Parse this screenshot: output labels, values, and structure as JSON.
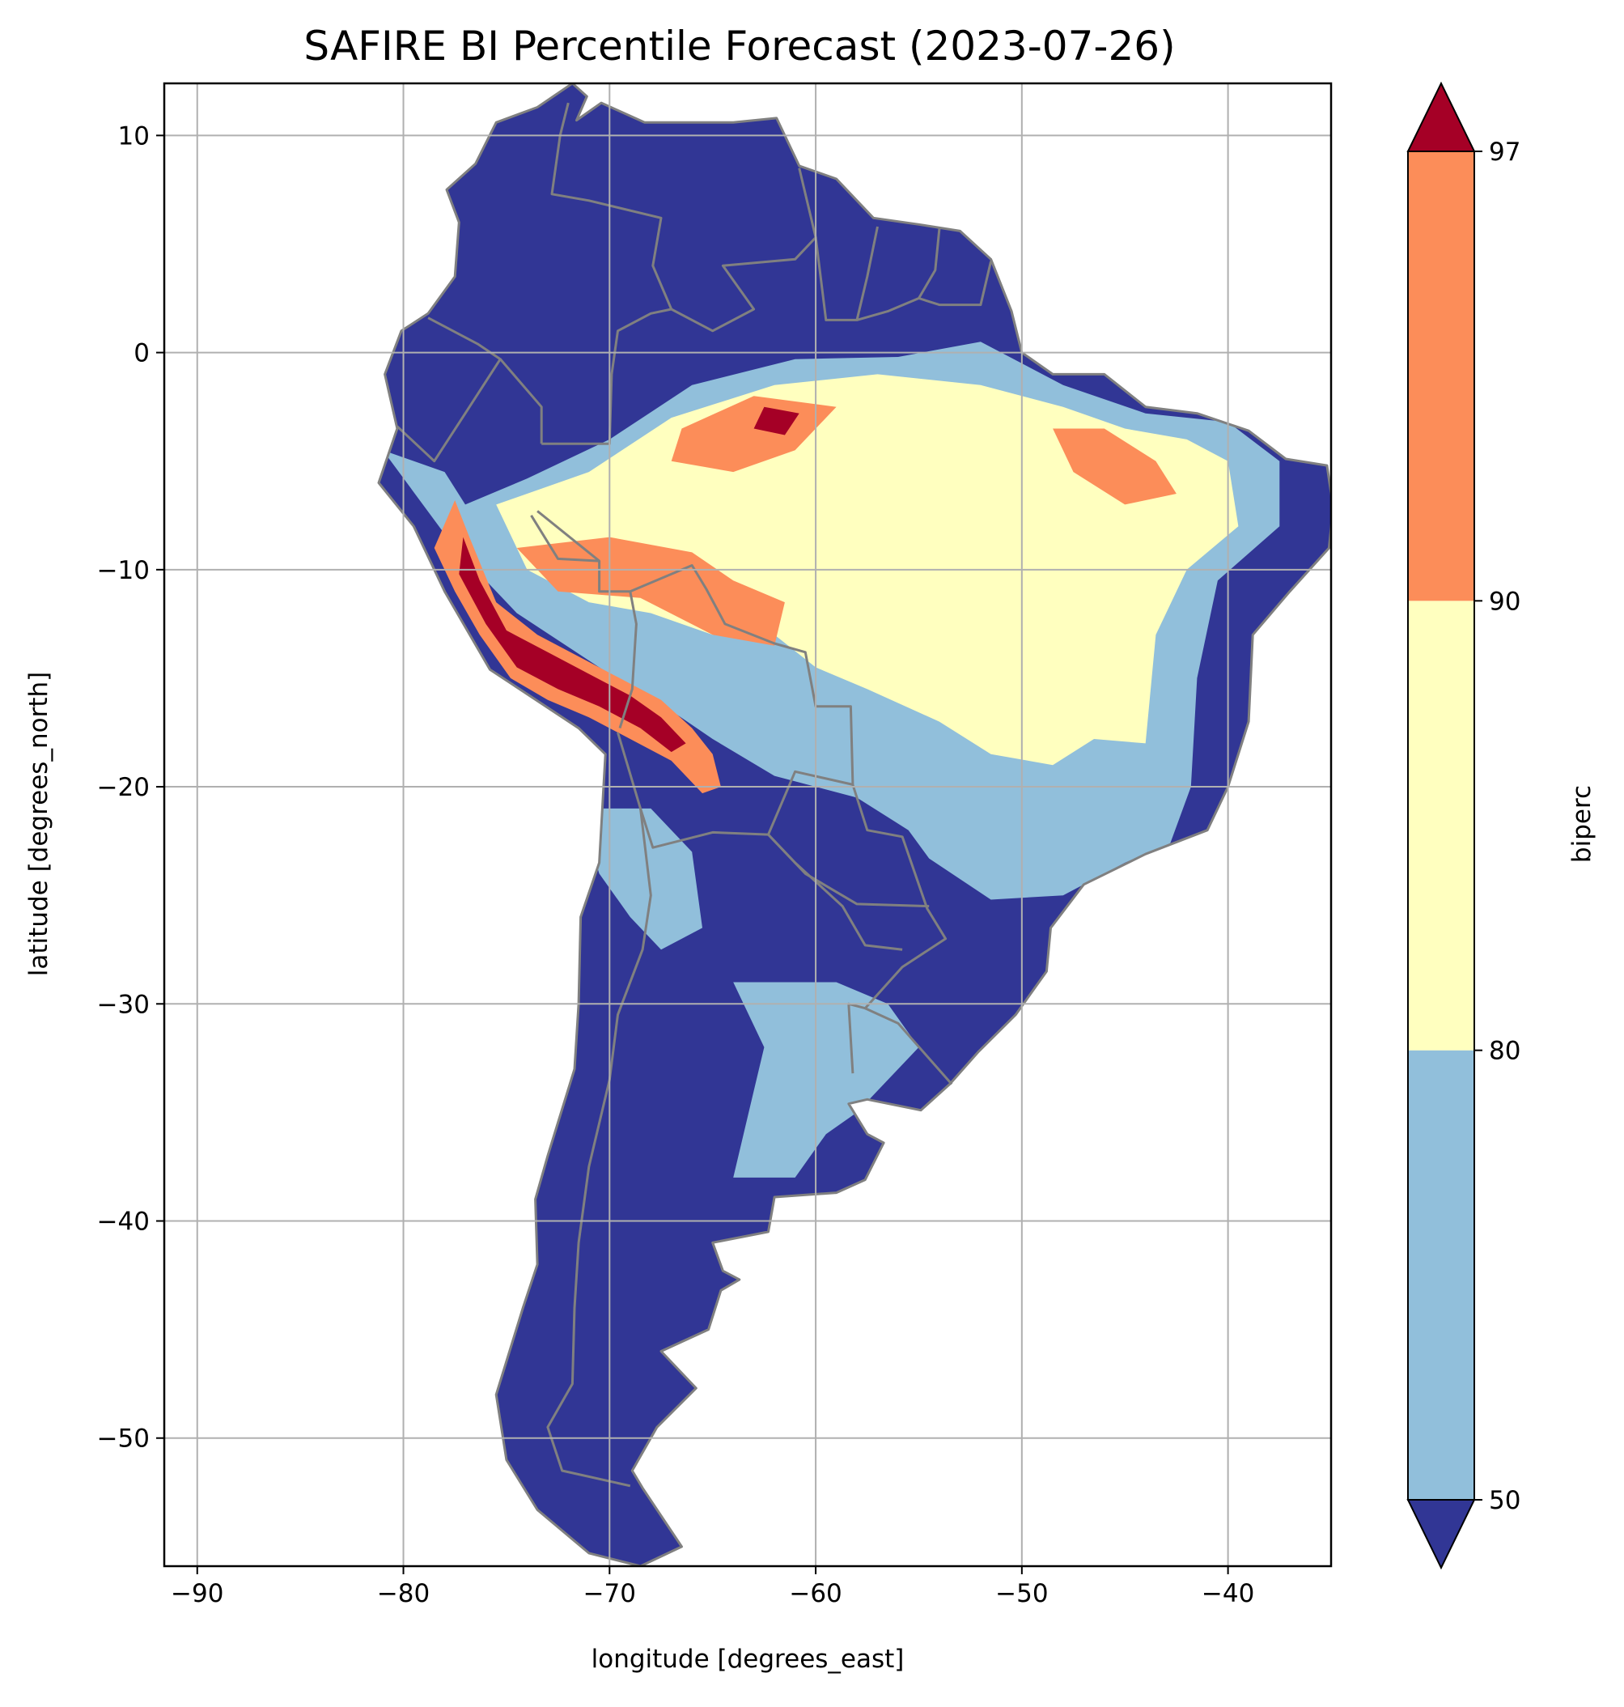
{
  "title": "SAFIRE BI Percentile Forecast (2023-07-26)",
  "x_axis": {
    "label": "longitude [degrees_east]",
    "ticks": [
      -90,
      -80,
      -70,
      -60,
      -50,
      -40
    ],
    "tick_labels": [
      "−90",
      "−80",
      "−70",
      "−60",
      "−50",
      "−40"
    ]
  },
  "y_axis": {
    "label": "latitude [degrees_north]",
    "ticks": [
      10,
      0,
      -10,
      -20,
      -30,
      -40,
      -50
    ],
    "tick_labels": [
      "10",
      "0",
      "−10",
      "−20",
      "−30",
      "−40",
      "−50"
    ]
  },
  "colorbar": {
    "label": "biperc",
    "ticks": [
      50,
      80,
      90,
      97
    ],
    "tick_labels": [
      "50",
      "80",
      "90",
      "97"
    ],
    "bins": [
      {
        "range": "<50",
        "color": "#313695"
      },
      {
        "range": "50-80",
        "color": "#91bfdb"
      },
      {
        "range": "80-90",
        "color": "#ffffbf"
      },
      {
        "range": "90-97",
        "color": "#fc8d59"
      },
      {
        "range": ">97",
        "color": "#a50026"
      }
    ]
  },
  "map": {
    "extent": {
      "lon": [
        -91.6,
        -35.0
      ],
      "lat": [
        -55.9,
        12.4
      ]
    },
    "grid": true,
    "border_color": "#808080",
    "land_default_color": "#313695",
    "coastline": [
      [
        -77.9,
        7.5
      ],
      [
        -76.5,
        8.7
      ],
      [
        -75.5,
        10.6
      ],
      [
        -73.5,
        11.3
      ],
      [
        -71.8,
        12.4
      ],
      [
        -71.1,
        11.8
      ],
      [
        -71.6,
        10.7
      ],
      [
        -70.4,
        11.5
      ],
      [
        -68.3,
        10.6
      ],
      [
        -66.0,
        10.6
      ],
      [
        -64.0,
        10.6
      ],
      [
        -61.9,
        10.8
      ],
      [
        -60.8,
        8.6
      ],
      [
        -59.0,
        8.0
      ],
      [
        -57.2,
        6.2
      ],
      [
        -55.0,
        5.9
      ],
      [
        -53.0,
        5.6
      ],
      [
        -51.5,
        4.3
      ],
      [
        -50.5,
        1.9
      ],
      [
        -50.0,
        0.0
      ],
      [
        -48.5,
        -1.0
      ],
      [
        -46.0,
        -1.0
      ],
      [
        -44.0,
        -2.5
      ],
      [
        -41.5,
        -2.8
      ],
      [
        -39.0,
        -3.6
      ],
      [
        -37.2,
        -4.9
      ],
      [
        -35.2,
        -5.2
      ],
      [
        -34.9,
        -7.1
      ],
      [
        -35.1,
        -9.0
      ],
      [
        -37.0,
        -11.0
      ],
      [
        -38.8,
        -13.0
      ],
      [
        -39.0,
        -17.0
      ],
      [
        -40.0,
        -20.0
      ],
      [
        -41.0,
        -22.0
      ],
      [
        -44.0,
        -23.1
      ],
      [
        -47.0,
        -24.5
      ],
      [
        -48.6,
        -26.5
      ],
      [
        -48.8,
        -28.5
      ],
      [
        -50.3,
        -30.5
      ],
      [
        -52.1,
        -32.2
      ],
      [
        -53.5,
        -33.7
      ],
      [
        -54.9,
        -34.9
      ],
      [
        -57.5,
        -34.4
      ],
      [
        -58.4,
        -34.6
      ],
      [
        -57.5,
        -36.0
      ],
      [
        -56.7,
        -36.4
      ],
      [
        -57.6,
        -38.1
      ],
      [
        -59.0,
        -38.7
      ],
      [
        -62.0,
        -38.9
      ],
      [
        -62.3,
        -40.5
      ],
      [
        -65.0,
        -41.0
      ],
      [
        -64.5,
        -42.3
      ],
      [
        -63.7,
        -42.7
      ],
      [
        -64.6,
        -43.2
      ],
      [
        -65.2,
        -45.0
      ],
      [
        -67.5,
        -46.0
      ],
      [
        -65.8,
        -47.7
      ],
      [
        -67.7,
        -49.5
      ],
      [
        -68.9,
        -51.5
      ],
      [
        -68.4,
        -52.3
      ],
      [
        -66.5,
        -55.0
      ],
      [
        -68.5,
        -55.9
      ],
      [
        -71.0,
        -55.3
      ],
      [
        -73.5,
        -53.3
      ],
      [
        -75.0,
        -51.0
      ],
      [
        -75.5,
        -48.0
      ],
      [
        -74.2,
        -44.0
      ],
      [
        -73.5,
        -42.0
      ],
      [
        -73.6,
        -39.0
      ],
      [
        -73.0,
        -37.0
      ],
      [
        -71.7,
        -33.0
      ],
      [
        -71.5,
        -30.0
      ],
      [
        -71.4,
        -26.0
      ],
      [
        -70.5,
        -23.5
      ],
      [
        -70.2,
        -18.5
      ],
      [
        -71.5,
        -17.3
      ],
      [
        -75.8,
        -14.6
      ],
      [
        -78.0,
        -11.0
      ],
      [
        -79.5,
        -8.0
      ],
      [
        -81.2,
        -6.0
      ],
      [
        -80.3,
        -3.5
      ],
      [
        -80.9,
        -1.0
      ],
      [
        -80.1,
        1.0
      ],
      [
        -78.8,
        1.8
      ],
      [
        -77.5,
        3.5
      ],
      [
        -77.3,
        6.0
      ],
      [
        -77.9,
        7.5
      ]
    ],
    "zones": [
      {
        "bin": "50-80",
        "polygon": [
          [
            -81.0,
            -4.5
          ],
          [
            -78.0,
            -5.5
          ],
          [
            -77.0,
            -7.0
          ],
          [
            -74.0,
            -5.8
          ],
          [
            -70.0,
            -4.0
          ],
          [
            -66.0,
            -1.5
          ],
          [
            -61.0,
            -0.3
          ],
          [
            -56.0,
            -0.2
          ],
          [
            -52.0,
            0.5
          ],
          [
            -48.0,
            -1.5
          ],
          [
            -44.0,
            -2.8
          ],
          [
            -40.0,
            -3.2
          ],
          [
            -37.5,
            -5.0
          ],
          [
            -37.5,
            -8.0
          ],
          [
            -40.5,
            -10.5
          ],
          [
            -41.5,
            -15.0
          ],
          [
            -41.8,
            -20.0
          ],
          [
            -42.8,
            -22.6
          ],
          [
            -45.0,
            -23.5
          ],
          [
            -48.0,
            -25.0
          ],
          [
            -51.5,
            -25.2
          ],
          [
            -54.5,
            -23.3
          ],
          [
            -55.5,
            -22.0
          ],
          [
            -58.0,
            -20.5
          ],
          [
            -62.0,
            -19.5
          ],
          [
            -65.0,
            -17.8
          ],
          [
            -67.0,
            -16.5
          ],
          [
            -70.5,
            -14.5
          ],
          [
            -74.5,
            -12.0
          ],
          [
            -77.5,
            -9.0
          ]
        ]
      },
      {
        "bin": "50-80",
        "polygon": [
          [
            -71.5,
            -21.0
          ],
          [
            -68.0,
            -21.0
          ],
          [
            -66.0,
            -23.0
          ],
          [
            -65.5,
            -26.5
          ],
          [
            -67.5,
            -27.5
          ],
          [
            -69.0,
            -26.0
          ],
          [
            -70.5,
            -24.0
          ]
        ]
      },
      {
        "bin": "50-80",
        "polygon": [
          [
            -64.0,
            -29.0
          ],
          [
            -59.0,
            -29.0
          ],
          [
            -56.5,
            -30.0
          ],
          [
            -55.0,
            -32.0
          ],
          [
            -58.0,
            -35.0
          ],
          [
            -59.5,
            -36.0
          ],
          [
            -61.0,
            -38.0
          ],
          [
            -64.0,
            -38.0
          ],
          [
            -63.0,
            -34.0
          ],
          [
            -62.5,
            -32.0
          ]
        ]
      },
      {
        "bin": "80-90",
        "polygon": [
          [
            -75.5,
            -7.0
          ],
          [
            -71.0,
            -5.5
          ],
          [
            -67.0,
            -3.0
          ],
          [
            -62.0,
            -1.5
          ],
          [
            -57.0,
            -1.0
          ],
          [
            -52.0,
            -1.5
          ],
          [
            -48.0,
            -2.5
          ],
          [
            -45.0,
            -3.5
          ],
          [
            -42.0,
            -4.0
          ],
          [
            -40.0,
            -5.0
          ],
          [
            -39.5,
            -8.0
          ],
          [
            -42.0,
            -10.0
          ],
          [
            -43.5,
            -13.0
          ],
          [
            -44.0,
            -18.0
          ],
          [
            -46.5,
            -17.8
          ],
          [
            -48.5,
            -19.0
          ],
          [
            -51.5,
            -18.5
          ],
          [
            -54.0,
            -17.0
          ],
          [
            -57.5,
            -15.5
          ],
          [
            -60.0,
            -14.5
          ],
          [
            -62.0,
            -13.0
          ],
          [
            -65.0,
            -13.0
          ],
          [
            -68.0,
            -12.0
          ],
          [
            -71.0,
            -11.5
          ],
          [
            -74.0,
            -10.0
          ]
        ]
      },
      {
        "bin": "90-97",
        "polygon": [
          [
            -66.5,
            -3.5
          ],
          [
            -63.0,
            -2.0
          ],
          [
            -59.0,
            -2.5
          ],
          [
            -61.0,
            -4.5
          ],
          [
            -64.0,
            -5.5
          ],
          [
            -67.0,
            -5.0
          ]
        ]
      },
      {
        "bin": "90-97",
        "polygon": [
          [
            -74.5,
            -9.0
          ],
          [
            -70.0,
            -8.5
          ],
          [
            -66.0,
            -9.2
          ],
          [
            -64.0,
            -10.5
          ],
          [
            -61.5,
            -11.5
          ],
          [
            -62.0,
            -13.5
          ],
          [
            -65.0,
            -13.0
          ],
          [
            -68.5,
            -11.3
          ],
          [
            -72.5,
            -11.0
          ]
        ]
      },
      {
        "bin": "90-97",
        "polygon": [
          [
            -48.5,
            -3.5
          ],
          [
            -46.0,
            -3.5
          ],
          [
            -43.5,
            -5.0
          ],
          [
            -42.5,
            -6.5
          ],
          [
            -45.0,
            -7.0
          ],
          [
            -47.5,
            -5.5
          ]
        ]
      },
      {
        "bin": "90-97",
        "polygon": [
          [
            -77.5,
            -6.8
          ],
          [
            -76.8,
            -8.5
          ],
          [
            -75.5,
            -11.5
          ],
          [
            -73.5,
            -13.0
          ],
          [
            -71.5,
            -14.0
          ],
          [
            -69.5,
            -15.0
          ],
          [
            -67.5,
            -16.0
          ],
          [
            -66.0,
            -17.3
          ],
          [
            -65.0,
            -18.5
          ],
          [
            -64.6,
            -20.0
          ],
          [
            -65.5,
            -20.3
          ],
          [
            -67.0,
            -18.8
          ],
          [
            -69.0,
            -17.8
          ],
          [
            -71.0,
            -16.8
          ],
          [
            -73.0,
            -16.0
          ],
          [
            -74.8,
            -15.0
          ],
          [
            -76.3,
            -13.0
          ],
          [
            -77.5,
            -11.0
          ],
          [
            -78.5,
            -9.0
          ]
        ]
      },
      {
        "bin": ">97",
        "polygon": [
          [
            -77.1,
            -8.5
          ],
          [
            -76.3,
            -10.5
          ],
          [
            -75.0,
            -12.8
          ],
          [
            -73.0,
            -13.8
          ],
          [
            -71.0,
            -14.8
          ],
          [
            -69.0,
            -15.8
          ],
          [
            -67.5,
            -16.8
          ],
          [
            -66.3,
            -18.0
          ],
          [
            -67.0,
            -18.4
          ],
          [
            -68.5,
            -17.3
          ],
          [
            -70.5,
            -16.3
          ],
          [
            -72.5,
            -15.5
          ],
          [
            -74.5,
            -14.5
          ],
          [
            -76.0,
            -12.5
          ],
          [
            -77.3,
            -10.2
          ]
        ]
      },
      {
        "bin": ">97",
        "polygon": [
          [
            -62.5,
            -2.5
          ],
          [
            -60.8,
            -2.8
          ],
          [
            -61.5,
            -3.8
          ],
          [
            -63.0,
            -3.5
          ]
        ]
      }
    ],
    "borders": [
      [
        [
          -73.3,
          -4.2
        ],
        [
          -70.0,
          -4.2
        ],
        [
          -69.9,
          -1.0
        ],
        [
          -69.6,
          1.0
        ],
        [
          -68.0,
          1.8
        ],
        [
          -67.0,
          2.0
        ]
      ],
      [
        [
          -73.5,
          -7.3
        ],
        [
          -70.5,
          -9.6
        ],
        [
          -70.5,
          -11.0
        ],
        [
          -69.0,
          -11.0
        ],
        [
          -66.0,
          -9.8
        ],
        [
          -65.3,
          -10.9
        ],
        [
          -64.4,
          -12.5
        ],
        [
          -62.0,
          -13.4
        ],
        [
          -60.5,
          -13.8
        ],
        [
          -60.0,
          -16.3
        ],
        [
          -58.3,
          -16.3
        ],
        [
          -58.2,
          -19.9
        ],
        [
          -57.5,
          -22.0
        ],
        [
          -55.8,
          -22.3
        ],
        [
          -54.6,
          -25.6
        ],
        [
          -53.7,
          -27.0
        ],
        [
          -55.8,
          -28.3
        ],
        [
          -57.6,
          -30.2
        ],
        [
          -56.0,
          -30.9
        ],
        [
          -53.4,
          -33.7
        ]
      ],
      [
        [
          -69.6,
          -17.5
        ],
        [
          -68.5,
          -21.0
        ],
        [
          -67.9,
          -22.8
        ],
        [
          -65.0,
          -22.1
        ],
        [
          -62.3,
          -22.2
        ],
        [
          -61.0,
          -19.3
        ],
        [
          -58.2,
          -19.9
        ]
      ],
      [
        [
          -69.5,
          -17.3
        ],
        [
          -68.9,
          -15.5
        ],
        [
          -68.7,
          -12.5
        ],
        [
          -69.0,
          -11.0
        ]
      ],
      [
        [
          -68.5,
          -21.0
        ],
        [
          -68.0,
          -25.0
        ],
        [
          -68.4,
          -27.5
        ],
        [
          -69.6,
          -30.5
        ],
        [
          -70.0,
          -33.5
        ],
        [
          -71.0,
          -37.5
        ],
        [
          -71.5,
          -41.0
        ],
        [
          -71.7,
          -44.0
        ],
        [
          -71.8,
          -47.5
        ],
        [
          -73.0,
          -49.5
        ],
        [
          -72.3,
          -51.5
        ],
        [
          -69.0,
          -52.2
        ]
      ],
      [
        [
          -62.3,
          -22.2
        ],
        [
          -61.0,
          -23.5
        ],
        [
          -58.7,
          -25.5
        ],
        [
          -57.6,
          -27.3
        ],
        [
          -55.8,
          -27.5
        ]
      ],
      [
        [
          -80.3,
          -3.4
        ],
        [
          -78.5,
          -5.0
        ],
        [
          -77.0,
          -2.8
        ],
        [
          -75.3,
          -0.3
        ],
        [
          -76.4,
          0.4
        ],
        [
          -78.8,
          1.6
        ]
      ],
      [
        [
          -75.3,
          -0.3
        ],
        [
          -73.3,
          -2.5
        ],
        [
          -73.3,
          -4.2
        ]
      ],
      [
        [
          -72.0,
          11.5
        ],
        [
          -72.4,
          10.0
        ],
        [
          -72.8,
          7.3
        ],
        [
          -71.0,
          7.0
        ],
        [
          -67.5,
          6.2
        ],
        [
          -67.9,
          4.0
        ],
        [
          -67.0,
          2.0
        ]
      ],
      [
        [
          -67.0,
          2.0
        ],
        [
          -65.0,
          1.0
        ],
        [
          -63.0,
          2.0
        ],
        [
          -64.5,
          4.0
        ],
        [
          -61.0,
          4.3
        ],
        [
          -60.0,
          5.3
        ],
        [
          -60.8,
          8.5
        ]
      ],
      [
        [
          -60.0,
          5.3
        ],
        [
          -59.5,
          1.5
        ],
        [
          -58.0,
          1.5
        ],
        [
          -56.5,
          1.9
        ],
        [
          -55.0,
          2.5
        ],
        [
          -54.0,
          2.2
        ],
        [
          -52.0,
          2.2
        ],
        [
          -51.5,
          4.2
        ]
      ],
      [
        [
          -58.0,
          1.5
        ],
        [
          -57.5,
          3.5
        ],
        [
          -57.0,
          5.8
        ]
      ],
      [
        [
          -55.0,
          2.5
        ],
        [
          -54.2,
          3.8
        ],
        [
          -54.0,
          5.7
        ]
      ],
      [
        [
          -70.5,
          -9.6
        ],
        [
          -72.5,
          -9.5
        ],
        [
          -73.8,
          -7.5
        ]
      ],
      [
        [
          -54.5,
          -25.5
        ],
        [
          -58.0,
          -25.4
        ],
        [
          -60.5,
          -24.0
        ],
        [
          -62.3,
          -22.2
        ]
      ],
      [
        [
          -58.2,
          -33.2
        ],
        [
          -58.4,
          -30.0
        ],
        [
          -57.6,
          -30.2
        ]
      ]
    ]
  }
}
